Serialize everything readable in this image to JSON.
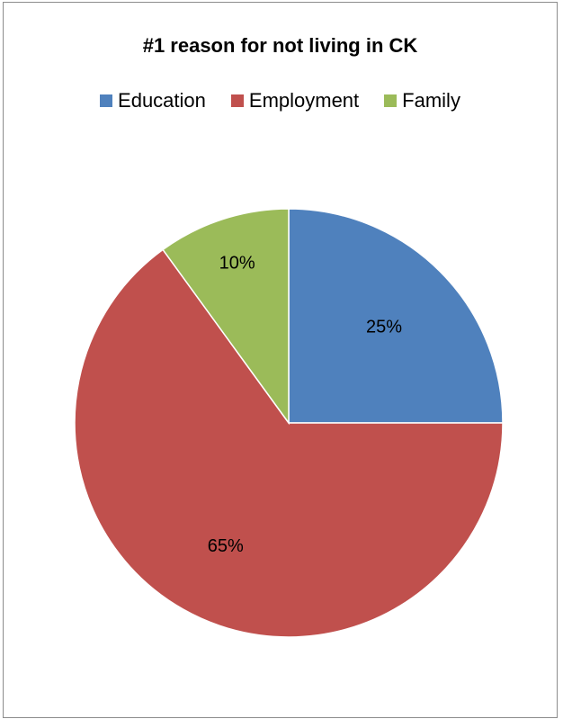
{
  "chart_data": {
    "type": "pie",
    "title": "#1 reason for not living in CK",
    "legend_placement": "top",
    "categories": [
      "Education",
      "Employment",
      "Family"
    ],
    "values": [
      25,
      65,
      10
    ],
    "data_labels": [
      "25%",
      "65%",
      "10%"
    ],
    "colors": [
      "#4f81bd",
      "#c0504d",
      "#9bbb59"
    ]
  }
}
